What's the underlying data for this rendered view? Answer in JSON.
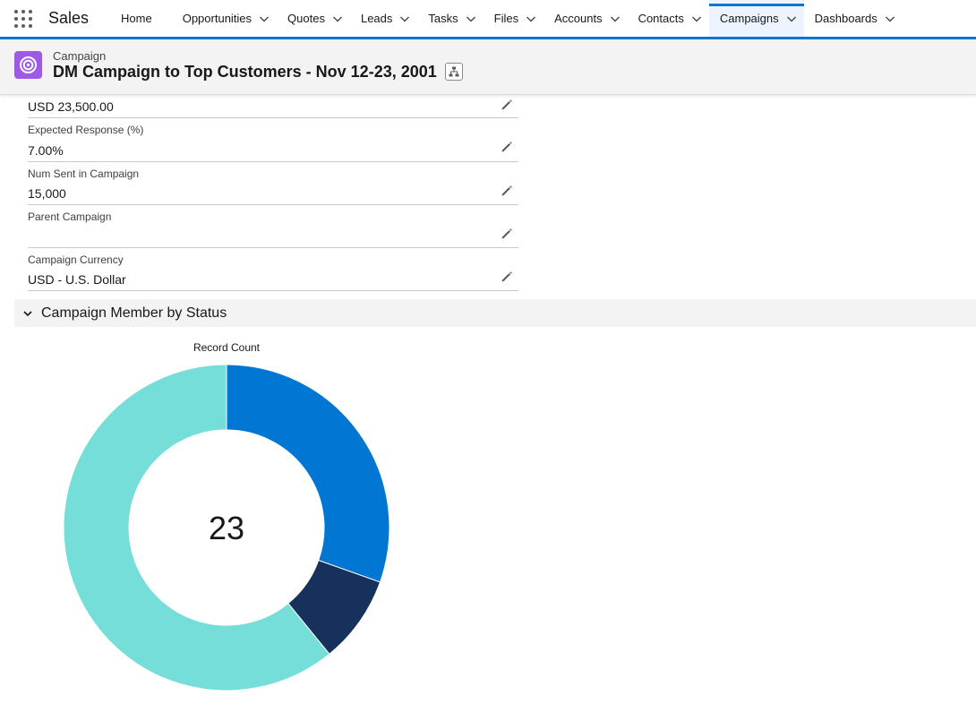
{
  "app": {
    "name": "Sales"
  },
  "nav": {
    "items": [
      {
        "label": "Home",
        "has_menu": false,
        "active": false
      },
      {
        "label": "Opportunities",
        "has_menu": true,
        "active": false
      },
      {
        "label": "Quotes",
        "has_menu": true,
        "active": false
      },
      {
        "label": "Leads",
        "has_menu": true,
        "active": false
      },
      {
        "label": "Tasks",
        "has_menu": true,
        "active": false
      },
      {
        "label": "Files",
        "has_menu": true,
        "active": false
      },
      {
        "label": "Accounts",
        "has_menu": true,
        "active": false
      },
      {
        "label": "Contacts",
        "has_menu": true,
        "active": false
      },
      {
        "label": "Campaigns",
        "has_menu": true,
        "active": true
      },
      {
        "label": "Dashboards",
        "has_menu": true,
        "active": false
      }
    ],
    "accent_color": "#0176d3"
  },
  "header": {
    "object_type": "Campaign",
    "title": "DM Campaign to Top Customers - Nov 12-23, 2001",
    "icon": "campaign-target-icon",
    "icon_color": "#9c5ae5",
    "hierarchy_icon": "hierarchy-icon"
  },
  "fields": [
    {
      "label": "",
      "value": "USD 23,500.00"
    },
    {
      "label": "Expected Response (%)",
      "value": "7.00%"
    },
    {
      "label": "Num Sent in Campaign",
      "value": "15,000"
    },
    {
      "label": "Parent Campaign",
      "value": ""
    },
    {
      "label": "Campaign Currency",
      "value": "USD - U.S. Dollar"
    }
  ],
  "section": {
    "title": "Campaign Member by Status",
    "expanded": true
  },
  "chart_data": {
    "type": "pie",
    "subtype": "donut",
    "title": "Record Count",
    "center_label": "23",
    "slices": [
      {
        "value": 7,
        "color": "#0176d3"
      },
      {
        "value": 2,
        "color": "#16325c"
      },
      {
        "value": 14,
        "color": "#76ded9"
      }
    ]
  }
}
